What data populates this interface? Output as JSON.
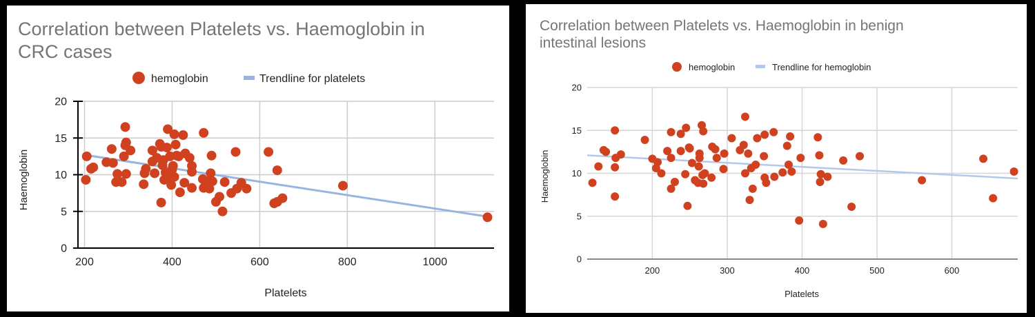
{
  "chart_data": [
    {
      "type": "scatter",
      "title": "Correlation between Platelets vs. Haemoglobin in CRC cases",
      "title_lines": [
        "Correlation between Platelets vs. Haemoglobin in",
        "CRC cases"
      ],
      "xlabel": "Platelets",
      "ylabel": "Haemoglobin",
      "xlim": [
        185,
        1135
      ],
      "ylim": [
        0,
        20
      ],
      "x_ticks": [
        200,
        400,
        600,
        800,
        1000
      ],
      "y_ticks": [
        0,
        5,
        10,
        15,
        20
      ],
      "grid": true,
      "legend": {
        "position": "top",
        "entries": [
          "hemoglobin",
          "Trendline for platelets"
        ]
      },
      "series": [
        {
          "name": "hemoglobin",
          "color": "#d0421f",
          "points": [
            [
              205,
              12.5
            ],
            [
              203,
              9.3
            ],
            [
              215,
              10.8
            ],
            [
              220,
              11.0
            ],
            [
              250,
              11.7
            ],
            [
              265,
              11.6
            ],
            [
              262,
              13.5
            ],
            [
              272,
              9.0
            ],
            [
              275,
              10.1
            ],
            [
              285,
              9.0
            ],
            [
              290,
              12.5
            ],
            [
              293,
              16.5
            ],
            [
              295,
              14.4
            ],
            [
              293,
              14.0
            ],
            [
              305,
              13.3
            ],
            [
              295,
              10.1
            ],
            [
              335,
              8.7
            ],
            [
              337,
              10.2
            ],
            [
              340,
              10.8
            ],
            [
              355,
              13.3
            ],
            [
              355,
              11.8
            ],
            [
              360,
              10.2
            ],
            [
              365,
              12.3
            ],
            [
              372,
              14.2
            ],
            [
              375,
              13.8
            ],
            [
              378,
              11.3
            ],
            [
              375,
              6.2
            ],
            [
              380,
              12.0
            ],
            [
              385,
              10.3
            ],
            [
              382,
              9.3
            ],
            [
              390,
              16.2
            ],
            [
              388,
              13.7
            ],
            [
              395,
              12.5
            ],
            [
              392,
              9.6
            ],
            [
              398,
              8.6
            ],
            [
              400,
              10.7
            ],
            [
              402,
              11.2
            ],
            [
              405,
              15.5
            ],
            [
              408,
              14.1
            ],
            [
              410,
              12.6
            ],
            [
              405,
              9.7
            ],
            [
              415,
              12.5
            ],
            [
              418,
              7.6
            ],
            [
              425,
              15.4
            ],
            [
              428,
              8.9
            ],
            [
              430,
              12.9
            ],
            [
              440,
              12.3
            ],
            [
              445,
              11.2
            ],
            [
              445,
              10.4
            ],
            [
              445,
              8.2
            ],
            [
              472,
              15.7
            ],
            [
              470,
              9.4
            ],
            [
              472,
              8.2
            ],
            [
              480,
              9.1
            ],
            [
              485,
              8.1
            ],
            [
              490,
              12.6
            ],
            [
              488,
              10.2
            ],
            [
              492,
              9.1
            ],
            [
              500,
              6.3
            ],
            [
              508,
              7.0
            ],
            [
              515,
              5.0
            ],
            [
              520,
              9.0
            ],
            [
              535,
              7.5
            ],
            [
              545,
              13.1
            ],
            [
              548,
              8.1
            ],
            [
              558,
              8.9
            ],
            [
              570,
              8.1
            ],
            [
              620,
              13.1
            ],
            [
              633,
              6.1
            ],
            [
              640,
              6.3
            ],
            [
              640,
              10.6
            ],
            [
              652,
              6.8
            ],
            [
              790,
              8.5
            ],
            [
              1120,
              4.2
            ]
          ]
        }
      ],
      "trendline": {
        "name": "Trendline for platelets",
        "color": "#97b5e0",
        "x": [
          200,
          1130
        ],
        "y": [
          12.7,
          4.2
        ]
      }
    },
    {
      "type": "scatter",
      "title": "Correlation between Platelets vs. Haemoglobin in benign intestinal lesions",
      "title_lines": [
        "Correlation between Platelets vs. Haemoglobin in benign",
        "intestinal lesions"
      ],
      "xlabel": "Platelets",
      "ylabel": "Haemoglobin",
      "xlim": [
        113,
        688
      ],
      "ylim": [
        0,
        20
      ],
      "x_ticks": [
        200,
        300,
        400,
        500,
        600
      ],
      "y_ticks": [
        0,
        5,
        10,
        15,
        20
      ],
      "grid": true,
      "legend": {
        "position": "top",
        "entries": [
          "hemoglobin",
          "Trendline for hemoglobin"
        ]
      },
      "series": [
        {
          "name": "hemoglobin",
          "color": "#d0421f",
          "points": [
            [
              120,
              8.9
            ],
            [
              128,
              10.8
            ],
            [
              135,
              12.7
            ],
            [
              138,
              12.5
            ],
            [
              150,
              15.0
            ],
            [
              151,
              11.8
            ],
            [
              150,
              10.7
            ],
            [
              150,
              7.3
            ],
            [
              158,
              12.2
            ],
            [
              190,
              13.9
            ],
            [
              200,
              11.7
            ],
            [
              205,
              10.6
            ],
            [
              207,
              11.3
            ],
            [
              212,
              10.0
            ],
            [
              220,
              12.6
            ],
            [
              225,
              14.8
            ],
            [
              225,
              11.8
            ],
            [
              225,
              8.2
            ],
            [
              230,
              9.0
            ],
            [
              238,
              12.6
            ],
            [
              238,
              14.6
            ],
            [
              244,
              9.9
            ],
            [
              245,
              15.3
            ],
            [
              247,
              6.2
            ],
            [
              249,
              13.0
            ],
            [
              250,
              12.9
            ],
            [
              253,
              11.2
            ],
            [
              257,
              9.2
            ],
            [
              261,
              8.9
            ],
            [
              262,
              10.8
            ],
            [
              263,
              12.3
            ],
            [
              263,
              11.8
            ],
            [
              266,
              15.6
            ],
            [
              267,
              9.8
            ],
            [
              268,
              14.9
            ],
            [
              268,
              8.8
            ],
            [
              270,
              10.0
            ],
            [
              279,
              9.5
            ],
            [
              280,
              13.1
            ],
            [
              284,
              12.8
            ],
            [
              286,
              11.8
            ],
            [
              295,
              10.5
            ],
            [
              296,
              12.3
            ],
            [
              306,
              14.1
            ],
            [
              317,
              12.7
            ],
            [
              322,
              13.3
            ],
            [
              324,
              10.0
            ],
            [
              324,
              16.6
            ],
            [
              328,
              12.3
            ],
            [
              330,
              6.9
            ],
            [
              332,
              10.6
            ],
            [
              334,
              8.2
            ],
            [
              338,
              11.0
            ],
            [
              340,
              14.1
            ],
            [
              349,
              12.0
            ],
            [
              350,
              14.5
            ],
            [
              350,
              9.5
            ],
            [
              352,
              8.9
            ],
            [
              362,
              14.8
            ],
            [
              363,
              9.6
            ],
            [
              374,
              10.1
            ],
            [
              380,
              13.2
            ],
            [
              382,
              11.0
            ],
            [
              384,
              14.3
            ],
            [
              386,
              10.2
            ],
            [
              396,
              4.5
            ],
            [
              398,
              11.8
            ],
            [
              421,
              14.2
            ],
            [
              423,
              12.1
            ],
            [
              424,
              9.0
            ],
            [
              425,
              9.9
            ],
            [
              428,
              4.1
            ],
            [
              434,
              9.6
            ],
            [
              455,
              11.5
            ],
            [
              466,
              6.1
            ],
            [
              477,
              12.0
            ],
            [
              560,
              9.2
            ],
            [
              642,
              11.7
            ],
            [
              655,
              7.1
            ],
            [
              683,
              10.2
            ]
          ]
        }
      ],
      "trendline": {
        "name": "Trendline for hemoglobin",
        "color": "#b3c9ea",
        "x": [
          113,
          688
        ],
        "y": [
          12.1,
          9.4
        ]
      }
    }
  ]
}
